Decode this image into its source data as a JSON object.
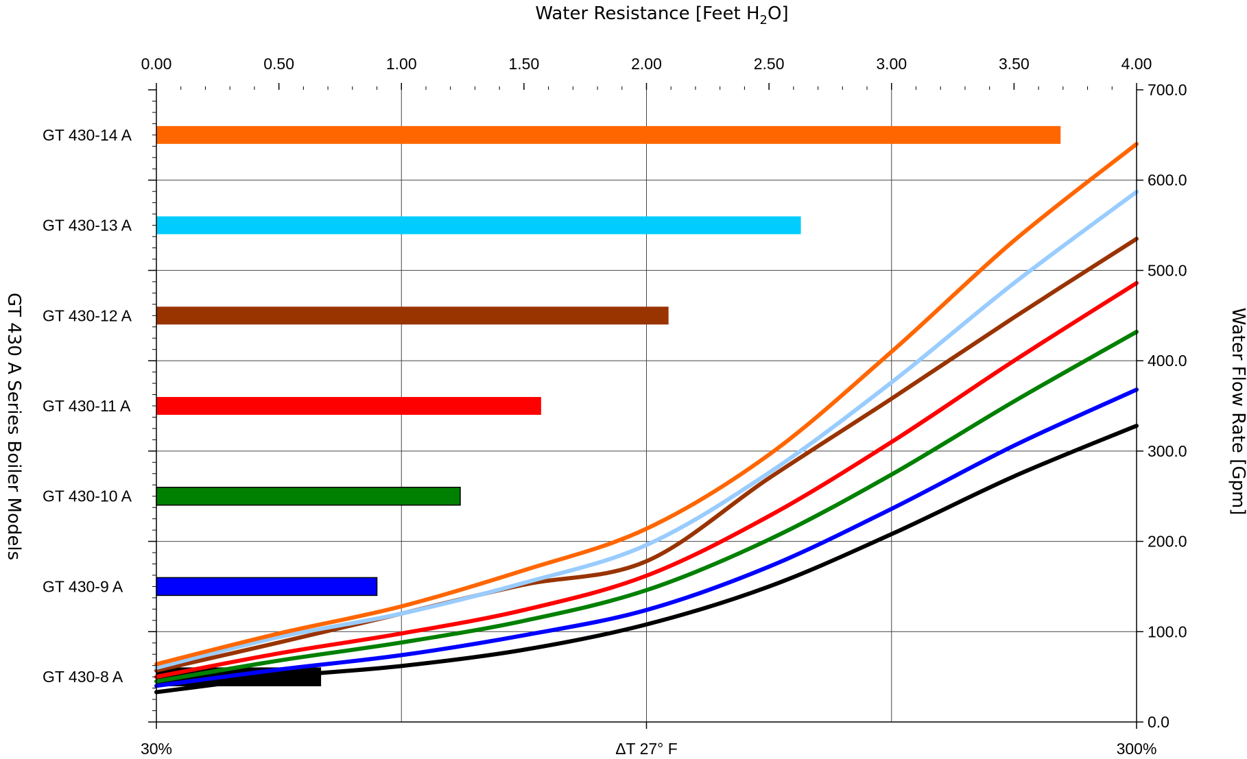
{
  "chart_data": {
    "type": "bar",
    "top_axis_title": "Water Resistance [Feet H",
    "top_axis_title_sub": "2",
    "top_axis_title_end": "O]",
    "left_axis_title": "GT 430 A Series Boiler Models",
    "right_axis_title": "Water Flow Rate [Gpm]",
    "top_axis": {
      "range": [
        0,
        4
      ],
      "ticks": [
        "0.00",
        "0.50",
        "1.00",
        "1.50",
        "2.00",
        "2.50",
        "3.00",
        "3.50",
        "4.00"
      ]
    },
    "right_axis": {
      "range": [
        0,
        700
      ],
      "ticks": [
        "0.0",
        "100.0",
        "200.0",
        "300.0",
        "400.0",
        "500.0",
        "600.0",
        "700.0"
      ]
    },
    "bottom_axis": {
      "labels": [
        "30%",
        "ΔT 27° F",
        "300%"
      ]
    },
    "grid": true,
    "bars": [
      {
        "model": "GT 430-14 A",
        "resistance": 3.69,
        "color": "#ff6600"
      },
      {
        "model": "GT 430-13 A",
        "resistance": 2.63,
        "color": "#00ccff"
      },
      {
        "model": "GT 430-12 A",
        "resistance": 2.09,
        "color": "#993300"
      },
      {
        "model": "GT 430-11 A",
        "resistance": 1.57,
        "color": "#ff0000"
      },
      {
        "model": "GT 430-10 A",
        "resistance": 1.24,
        "color": "#008000"
      },
      {
        "model": "GT 430-9 A",
        "resistance": 0.9,
        "color": "#0000ff"
      },
      {
        "model": "GT 430-8 A",
        "resistance": 0.67,
        "color": "#000000"
      }
    ],
    "curves": [
      {
        "color": "#000000",
        "points": [
          [
            0,
            33
          ],
          [
            0.5,
            50
          ],
          [
            1,
            62
          ],
          [
            1.5,
            80
          ],
          [
            2,
            108
          ],
          [
            2.5,
            150
          ],
          [
            3,
            208
          ],
          [
            3.5,
            272
          ],
          [
            4,
            328
          ]
        ]
      },
      {
        "color": "#0000ff",
        "points": [
          [
            0,
            40
          ],
          [
            0.5,
            58
          ],
          [
            1,
            74
          ],
          [
            1.5,
            96
          ],
          [
            2,
            124
          ],
          [
            2.5,
            172
          ],
          [
            3,
            236
          ],
          [
            3.5,
            306
          ],
          [
            4,
            368
          ]
        ]
      },
      {
        "color": "#008000",
        "points": [
          [
            0,
            45
          ],
          [
            0.5,
            68
          ],
          [
            1,
            88
          ],
          [
            1.5,
            112
          ],
          [
            2,
            146
          ],
          [
            2.5,
            202
          ],
          [
            3,
            274
          ],
          [
            3.5,
            355
          ],
          [
            4,
            432
          ]
        ]
      },
      {
        "color": "#ff0000",
        "points": [
          [
            0,
            50
          ],
          [
            0.5,
            76
          ],
          [
            1,
            98
          ],
          [
            1.5,
            124
          ],
          [
            2,
            162
          ],
          [
            2.5,
            228
          ],
          [
            3,
            310
          ],
          [
            3.5,
            400
          ],
          [
            4,
            486
          ]
        ]
      },
      {
        "color": "#993300",
        "points": [
          [
            0,
            57
          ],
          [
            0.5,
            88
          ],
          [
            1,
            120
          ],
          [
            1.5,
            152
          ],
          [
            2,
            178
          ],
          [
            2.5,
            270
          ],
          [
            3,
            358
          ],
          [
            3.5,
            448
          ],
          [
            4,
            535
          ]
        ]
      },
      {
        "color": "#99ccff",
        "points": [
          [
            0,
            60
          ],
          [
            0.5,
            94
          ],
          [
            1,
            120
          ],
          [
            1.5,
            154
          ],
          [
            2,
            196
          ],
          [
            2.5,
            276
          ],
          [
            3,
            376
          ],
          [
            3.5,
            486
          ],
          [
            4,
            587
          ]
        ]
      },
      {
        "color": "#ff6600",
        "points": [
          [
            0,
            64
          ],
          [
            0.5,
            98
          ],
          [
            1,
            128
          ],
          [
            1.5,
            168
          ],
          [
            2,
            214
          ],
          [
            2.5,
            296
          ],
          [
            3,
            410
          ],
          [
            3.5,
            533
          ],
          [
            4,
            640
          ]
        ]
      }
    ]
  }
}
